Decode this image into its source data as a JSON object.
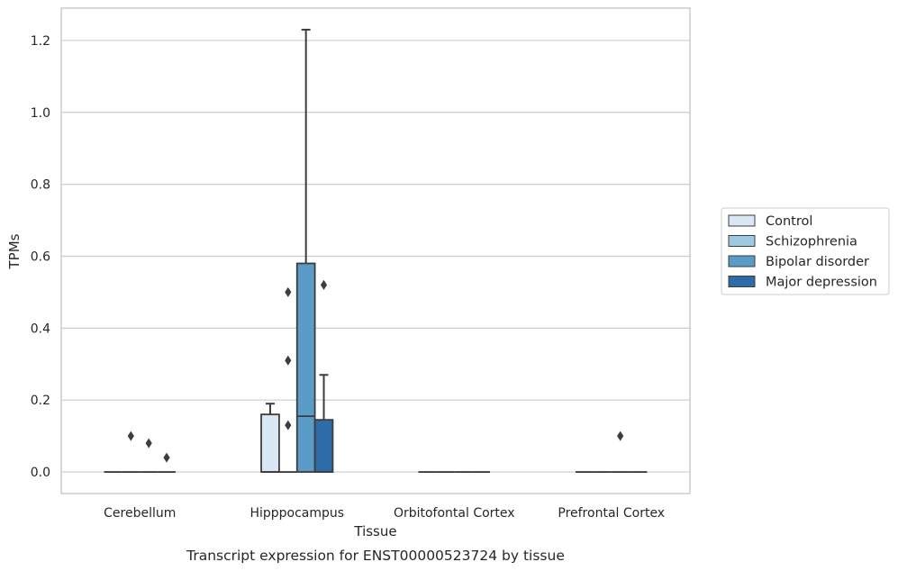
{
  "chart_data": {
    "type": "box",
    "title": "",
    "caption": "Transcript expression for ENST00000523724 by tissue",
    "xlabel": "Tissue",
    "ylabel": "TPMs",
    "ylim": [
      -0.06,
      1.29
    ],
    "yticks": [
      0.0,
      0.2,
      0.4,
      0.6,
      0.8,
      1.0,
      1.2
    ],
    "ytick_labels": [
      "0.0",
      "0.2",
      "0.4",
      "0.6",
      "0.8",
      "1.0",
      "1.2"
    ],
    "grid": "horizontal",
    "legend_position": "right",
    "categories": [
      "Cerebellum",
      "Hipppocampus",
      "Orbitofontal Cortex",
      "Prefrontal Cortex"
    ],
    "series": [
      {
        "name": "Control",
        "color": "#dae8f6",
        "boxes": [
          {
            "q1": 0,
            "median": 0,
            "q3": 0,
            "whisker_low": 0,
            "whisker_high": 0,
            "outliers": []
          },
          {
            "q1": 0,
            "median": 0,
            "q3": 0.16,
            "whisker_low": 0,
            "whisker_high": 0.19,
            "outliers": []
          },
          {
            "q1": 0,
            "median": 0,
            "q3": 0,
            "whisker_low": 0,
            "whisker_high": 0,
            "outliers": []
          },
          {
            "q1": 0,
            "median": 0,
            "q3": 0,
            "whisker_low": 0,
            "whisker_high": 0,
            "outliers": []
          }
        ]
      },
      {
        "name": "Schizophrenia",
        "color": "#9ecae1",
        "boxes": [
          {
            "q1": 0,
            "median": 0,
            "q3": 0,
            "whisker_low": 0,
            "whisker_high": 0,
            "outliers": [
              0.1
            ]
          },
          {
            "q1": 0,
            "median": 0,
            "q3": 0,
            "whisker_low": 0,
            "whisker_high": 0,
            "outliers": [
              0.5,
              0.31,
              0.13
            ]
          },
          {
            "q1": 0,
            "median": 0,
            "q3": 0,
            "whisker_low": 0,
            "whisker_high": 0,
            "outliers": []
          },
          {
            "q1": 0,
            "median": 0,
            "q3": 0,
            "whisker_low": 0,
            "whisker_high": 0,
            "outliers": []
          }
        ]
      },
      {
        "name": "Bipolar disorder",
        "color": "#5a9bc8",
        "boxes": [
          {
            "q1": 0,
            "median": 0,
            "q3": 0,
            "whisker_low": 0,
            "whisker_high": 0,
            "outliers": [
              0.08
            ]
          },
          {
            "q1": 0,
            "median": 0.155,
            "q3": 0.58,
            "whisker_low": 0,
            "whisker_high": 1.23,
            "outliers": []
          },
          {
            "q1": 0,
            "median": 0,
            "q3": 0,
            "whisker_low": 0,
            "whisker_high": 0,
            "outliers": []
          },
          {
            "q1": 0,
            "median": 0,
            "q3": 0,
            "whisker_low": 0,
            "whisker_high": 0,
            "outliers": [
              0.1
            ]
          }
        ]
      },
      {
        "name": "Major depression",
        "color": "#2d6ca8",
        "boxes": [
          {
            "q1": 0,
            "median": 0,
            "q3": 0,
            "whisker_low": 0,
            "whisker_high": 0,
            "outliers": [
              0.04
            ]
          },
          {
            "q1": 0,
            "median": 0,
            "q3": 0.145,
            "whisker_low": 0,
            "whisker_high": 0.27,
            "outliers": [
              0.52
            ]
          },
          {
            "q1": 0,
            "median": 0,
            "q3": 0,
            "whisker_low": 0,
            "whisker_high": 0,
            "outliers": []
          },
          {
            "q1": 0,
            "median": 0,
            "q3": 0,
            "whisker_low": 0,
            "whisker_high": 0,
            "outliers": []
          }
        ]
      }
    ]
  }
}
